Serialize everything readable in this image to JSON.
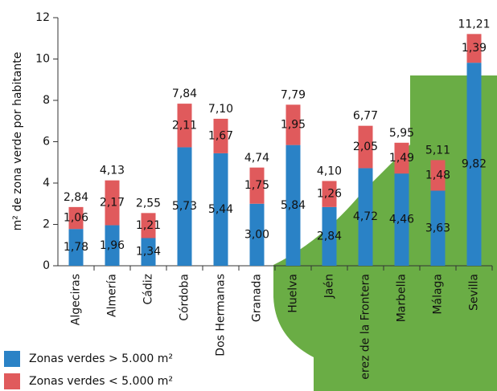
{
  "chart_data": {
    "type": "stacked_bar",
    "ylabel": "m² de zona verde por habitante",
    "categories": [
      "Algeciras",
      "Almería",
      "Cádiz",
      "Córdoba",
      "Dos Hermanas",
      "Granada",
      "Huelva",
      "Jaén",
      "erez de la Frontera",
      "Marbella",
      "Málaga",
      "Sevilla"
    ],
    "series": [
      {
        "name": "Zonas verdes > 5.000 m²",
        "color": "#2a82c6",
        "values": [
          1.78,
          1.96,
          1.34,
          5.73,
          5.44,
          3.0,
          5.84,
          2.84,
          4.72,
          4.46,
          3.63,
          9.82
        ],
        "value_labels": [
          "1,78",
          "1,96",
          "1,34",
          "5,73",
          "5,44",
          "3,00",
          "5,84",
          "2,84",
          "4,72",
          "4,46",
          "3,63",
          "9,82"
        ]
      },
      {
        "name": "Zonas verdes < 5.000 m²",
        "color": "#e05a5c",
        "values": [
          1.06,
          2.17,
          1.21,
          2.11,
          1.67,
          1.75,
          1.95,
          1.26,
          2.05,
          1.49,
          1.48,
          1.39
        ],
        "value_labels": [
          "1,06",
          "2,17",
          "1,21",
          "2,11",
          "1,67",
          "1,75",
          "1,95",
          "1,26",
          "2,05",
          "1,49",
          "1,48",
          "1,39"
        ]
      }
    ],
    "totals": [
      2.84,
      4.13,
      2.55,
      7.84,
      7.1,
      4.74,
      7.79,
      4.1,
      6.77,
      5.95,
      5.11,
      11.21
    ],
    "total_labels": [
      "2,84",
      "4,13",
      "2,55",
      "7,84",
      "7,10",
      "4,74",
      "7,79",
      "4,10",
      "6,77",
      "5,95",
      "5,11",
      "11,21"
    ],
    "ylim": [
      0,
      12
    ],
    "yticks": [
      0,
      2,
      4,
      6,
      8,
      10,
      12
    ]
  }
}
